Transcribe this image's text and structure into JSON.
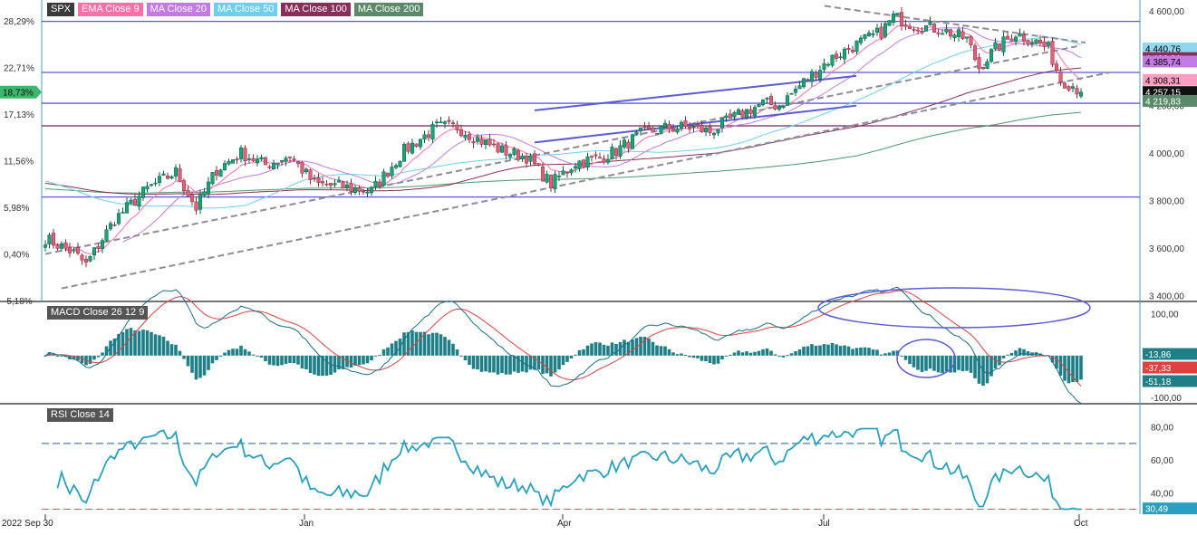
{
  "legend": [
    {
      "label": "SPX",
      "color": "#3a3a3a"
    },
    {
      "label": "EMA Close 9",
      "color": "#ff6fa8"
    },
    {
      "label": "MA Close 20",
      "color": "#c47ae6"
    },
    {
      "label": "MA Close 50",
      "color": "#6dd0f0"
    },
    {
      "label": "MA Close 100",
      "color": "#8a2e58"
    },
    {
      "label": "MA Close 200",
      "color": "#5a8a6a"
    }
  ],
  "macd_label": "MACD Close 26 12 9",
  "rsi_label": "RSI Close 14",
  "colors": {
    "up": "#1aa37a",
    "down": "#e0607a",
    "hline": "#5b5bd6",
    "trend": "#8c8c9c",
    "macd_fast": "#1a6e8c",
    "macd_signal": "#e04040",
    "macd_hist": "#1f7f86",
    "rsi": "#2aa0c0",
    "rsi_level": "#1f5f99"
  },
  "chart_data": [
    {
      "type": "candlestick",
      "title": "SPX",
      "x_tick_labels": [
        "2022 Sep 30",
        "Jan",
        "Apr",
        "Jul",
        "Oct"
      ],
      "y_ticks": [
        3400,
        3600,
        3800,
        4000,
        4200,
        4400,
        4600
      ],
      "y_tick_labels": [
        "3 400,00",
        "3 600,00",
        "3 800,00",
        "4 000,00",
        "4 200,00",
        "4 400,00",
        "4 600,00"
      ],
      "ylim": [
        3375,
        4645
      ],
      "pct_ticks": [
        -5.18,
        0.4,
        5.98,
        11.56,
        17.13,
        22.71,
        28.29
      ],
      "pct_tick_labels": [
        "-5,18%",
        "0,40%",
        "5,98%",
        "11,56%",
        "17,13%",
        "22,71%",
        "28,29%"
      ],
      "pct_marker": {
        "label": "18,73%",
        "value": 4257.15
      },
      "horizontal_levels": [
        4555,
        4340,
        4210,
        4115,
        3815
      ],
      "price_labels": [
        {
          "value": 4440.76,
          "label": "4 440,76",
          "color": "#8fd6f0",
          "text_color": "#000000"
        },
        {
          "value": 4400.26,
          "label": "4 400,26",
          "color": "#8a2e58",
          "text_color": "#ffffff"
        },
        {
          "value": 4385.74,
          "label": "4 385,74",
          "color": "#c47ae6",
          "text_color": "#000000"
        },
        {
          "value": 4308.31,
          "label": "4 308,31",
          "color": "#ff9ec0",
          "text_color": "#000000"
        },
        {
          "value": 4257.15,
          "label": "4 257,15",
          "color": "#111111",
          "text_color": "#ffffff"
        },
        {
          "value": 4219.83,
          "label": "4 219,83",
          "color": "#5a8a6a",
          "text_color": "#ffffff"
        }
      ]
    },
    {
      "type": "line",
      "title": "MACD Close 26 12 9",
      "y_ticks": [
        100,
        -100
      ],
      "y_tick_labels": [
        "100,00",
        "-100,00"
      ],
      "ylim": [
        -115,
        125
      ],
      "value_labels": [
        {
          "value": -13.86,
          "label": "-13,86",
          "color": "#1f7f86"
        },
        {
          "value": -37.33,
          "label": "-37,33",
          "color": "#e04040"
        },
        {
          "value": -51.18,
          "label": "-51,18",
          "color": "#1f7f86"
        }
      ]
    },
    {
      "type": "line",
      "title": "RSI Close 14",
      "y_ticks": [
        80,
        60,
        40
      ],
      "y_tick_labels": [
        "80,00",
        "60,00",
        "40,00"
      ],
      "ylim": [
        27,
        93
      ],
      "levels": [
        70,
        30
      ],
      "value_labels": [
        {
          "value": 30.49,
          "label": "30,49",
          "color": "#2aa0c0"
        }
      ]
    }
  ]
}
